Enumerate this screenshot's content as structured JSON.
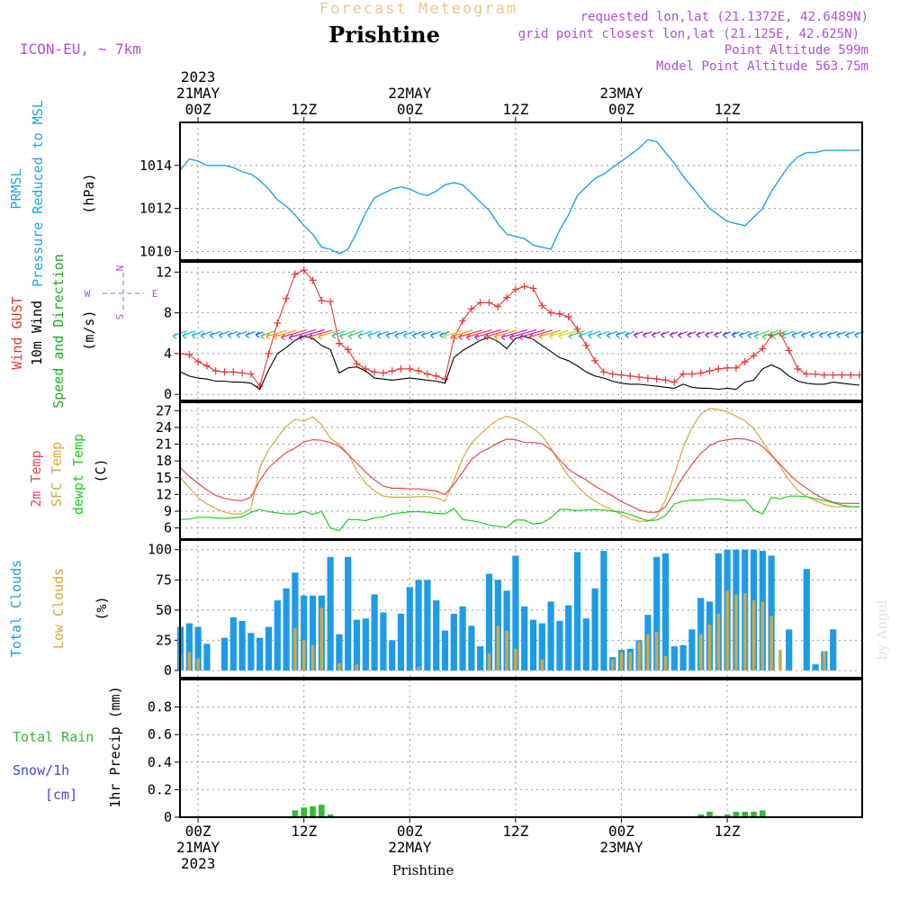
{
  "header": {
    "subtitle": "Forecast Meteogram",
    "title": "Prishtine",
    "model": "ICON-EU, ~ 7km",
    "requested": "requested lon,lat (21.1372E, 42.6489N)",
    "grid": "grid point closest lon,lat (21.125E, 42.625N)",
    "point_alt": "Point Altitude 599m",
    "model_alt": "Model Point Altitude 563.75m",
    "bottom_name": "Prishtine",
    "credit": "by Angel"
  },
  "time_axis": {
    "top_labels": [
      {
        "h": 0,
        "lines": [
          "2023",
          "21MAY",
          "00Z"
        ]
      },
      {
        "h": 12,
        "lines": [
          "12Z"
        ]
      },
      {
        "h": 24,
        "lines": [
          "22MAY",
          "00Z"
        ]
      },
      {
        "h": 36,
        "lines": [
          "12Z"
        ]
      },
      {
        "h": 48,
        "lines": [
          "23MAY",
          "00Z"
        ]
      },
      {
        "h": 60,
        "lines": [
          "12Z"
        ]
      }
    ],
    "bottom_labels": [
      {
        "h": 0,
        "lines": [
          "00Z",
          "21MAY",
          "2023"
        ]
      },
      {
        "h": 12,
        "lines": [
          "12Z"
        ]
      },
      {
        "h": 24,
        "lines": [
          "00Z",
          "22MAY"
        ]
      },
      {
        "h": 36,
        "lines": [
          "12Z"
        ]
      },
      {
        "h": 48,
        "lines": [
          "00Z",
          "23MAY"
        ]
      },
      {
        "h": 60,
        "lines": [
          "12Z"
        ]
      }
    ]
  },
  "panel_labels": {
    "p1": {
      "left1": "PRMSL",
      "left2": "Pressure Reduced to MSL",
      "unit": "(hPa)"
    },
    "p2": {
      "gust": "Wind GUST",
      "wind": "10m Wind",
      "dir": "Speed and Direction",
      "unit": "(m/s)",
      "compass_n": "N",
      "compass_s": "S",
      "compass_w": "W",
      "compass_e": "E"
    },
    "p3": {
      "t2m": "2m Temp",
      "sfc": "SFC Temp",
      "dew": "dewpt Temp",
      "unit": "(C)"
    },
    "p4": {
      "total": "Total Clouds",
      "low": "Low Clouds",
      "unit": "(%)"
    },
    "p5": {
      "rain": "Total  Rain",
      "snow": "Snow/1h",
      "cm": "[cm]",
      "unit": "1hr Precip (mm)"
    }
  },
  "colors": {
    "pressure": "#1ea5e8",
    "gust": "#ee3333",
    "wind": "#000000",
    "t2m": "#e84a4a",
    "sfc": "#dca640",
    "dew": "#22cc22",
    "total_cloud": "#1e9be6",
    "low_cloud": "#c8aa50",
    "rain": "#33bb33",
    "snow": "#4444dd",
    "label_purple": "#b050d8",
    "title_orange": "#f0c890"
  },
  "chart_data": [
    {
      "type": "line",
      "name": "PRMSL",
      "ylabel": "(hPa)",
      "ylim": [
        1009.6,
        1016
      ],
      "yticks": [
        1010,
        1012,
        1014
      ],
      "x": [
        -2,
        -1,
        0,
        1,
        2,
        3,
        4,
        5,
        6,
        7,
        8,
        9,
        10,
        11,
        12,
        13,
        14,
        15,
        16,
        17,
        18,
        19,
        20,
        21,
        22,
        23,
        24,
        25,
        26,
        27,
        28,
        29,
        30,
        31,
        32,
        33,
        34,
        35,
        36,
        37,
        38,
        39,
        40,
        41,
        42,
        43,
        44,
        45,
        46,
        47,
        48,
        49,
        50,
        51,
        52,
        53,
        54,
        55,
        56,
        57,
        58,
        59,
        60,
        61,
        62,
        63,
        64,
        65,
        66,
        67,
        68,
        69,
        70,
        71,
        72,
        73,
        74,
        75
      ],
      "values": [
        1013.8,
        1014.3,
        1014.2,
        1014.0,
        1014.0,
        1014.0,
        1013.9,
        1013.7,
        1013.6,
        1013.3,
        1012.9,
        1012.4,
        1012.1,
        1011.7,
        1011.2,
        1010.8,
        1010.2,
        1010.1,
        1009.9,
        1010.1,
        1010.9,
        1011.8,
        1012.5,
        1012.7,
        1012.9,
        1013.0,
        1012.9,
        1012.7,
        1012.6,
        1012.8,
        1013.1,
        1013.2,
        1013.1,
        1012.7,
        1012.3,
        1011.9,
        1011.3,
        1010.8,
        1010.7,
        1010.6,
        1010.3,
        1010.2,
        1010.1,
        1011.0,
        1011.7,
        1012.6,
        1013.0,
        1013.4,
        1013.6,
        1013.9,
        1014.2,
        1014.5,
        1014.8,
        1015.2,
        1015.1,
        1014.6,
        1014.1,
        1013.5,
        1013.0,
        1012.5,
        1012.0,
        1011.7,
        1011.4,
        1011.3,
        1011.2,
        1011.6,
        1012.0,
        1012.8,
        1013.4,
        1014.0,
        1014.4,
        1014.6,
        1014.6,
        1014.7,
        1014.7,
        1014.7,
        1014.7,
        1014.7
      ]
    },
    {
      "type": "line",
      "name": "Wind",
      "ylabel": "(m/s)",
      "ylim": [
        -0.6,
        13
      ],
      "yticks": [
        0,
        4,
        8,
        12
      ],
      "x": [
        -2,
        -1,
        0,
        1,
        2,
        3,
        4,
        5,
        6,
        7,
        8,
        9,
        10,
        11,
        12,
        13,
        14,
        15,
        16,
        17,
        18,
        19,
        20,
        21,
        22,
        23,
        24,
        25,
        26,
        27,
        28,
        29,
        30,
        31,
        32,
        33,
        34,
        35,
        36,
        37,
        38,
        39,
        40,
        41,
        42,
        43,
        44,
        45,
        46,
        47,
        48,
        49,
        50,
        51,
        52,
        53,
        54,
        55,
        56,
        57,
        58,
        59,
        60,
        61,
        62,
        63,
        64,
        65,
        66,
        67,
        68,
        69,
        70,
        71,
        72,
        73,
        74,
        75
      ],
      "series": [
        {
          "name": "Wind GUST",
          "values": [
            4.0,
            3.9,
            3.2,
            2.8,
            2.3,
            2.2,
            2.2,
            2.1,
            2.0,
            0.8,
            4.0,
            7.0,
            9.4,
            11.8,
            12.2,
            11.2,
            9.2,
            9.1,
            5.0,
            4.4,
            3.0,
            2.5,
            2.2,
            2.1,
            2.3,
            2.5,
            2.5,
            2.3,
            2.0,
            1.8,
            1.5,
            5.5,
            7.2,
            8.4,
            9.0,
            9.0,
            8.6,
            9.5,
            10.3,
            10.6,
            10.4,
            8.7,
            8.0,
            7.9,
            7.6,
            6.4,
            4.8,
            3.3,
            2.2,
            2.0,
            1.9,
            1.8,
            1.7,
            1.6,
            1.5,
            1.4,
            1.2,
            2.0,
            2.0,
            2.1,
            2.3,
            2.5,
            2.6,
            2.6,
            3.2,
            3.8,
            4.5,
            5.8,
            6.0,
            4.3,
            2.5,
            2.0,
            2.0,
            1.9,
            1.9,
            1.9,
            1.9,
            1.9
          ]
        },
        {
          "name": "10m Wind",
          "values": [
            2.2,
            1.8,
            1.6,
            1.5,
            1.3,
            1.3,
            1.2,
            1.2,
            1.1,
            0.5,
            2.4,
            4.0,
            4.6,
            5.3,
            5.7,
            5.5,
            4.8,
            4.4,
            2.1,
            2.6,
            2.7,
            2.3,
            1.6,
            1.5,
            1.4,
            1.5,
            1.6,
            1.5,
            1.4,
            1.3,
            1.1,
            3.6,
            4.3,
            4.8,
            5.3,
            5.6,
            5.2,
            4.5,
            5.5,
            5.7,
            5.4,
            4.8,
            4.2,
            3.6,
            3.3,
            2.8,
            2.2,
            1.8,
            1.6,
            1.3,
            1.1,
            1.0,
            1.0,
            0.9,
            0.8,
            0.7,
            0.6,
            1.0,
            0.7,
            0.6,
            0.6,
            0.5,
            0.6,
            0.5,
            1.2,
            1.4,
            2.5,
            2.9,
            2.5,
            1.8,
            1.3,
            1.1,
            1.0,
            1.0,
            1.2,
            1.1,
            1.0,
            0.9
          ]
        }
      ]
    },
    {
      "type": "line",
      "name": "Temperature",
      "ylabel": "(C)",
      "ylim": [
        4,
        28.5
      ],
      "yticks": [
        6,
        9,
        12,
        15,
        18,
        21,
        24,
        27
      ],
      "x": [
        -2,
        -1,
        0,
        1,
        2,
        3,
        4,
        5,
        6,
        7,
        8,
        9,
        10,
        11,
        12,
        13,
        14,
        15,
        16,
        17,
        18,
        19,
        20,
        21,
        22,
        23,
        24,
        25,
        26,
        27,
        28,
        29,
        30,
        31,
        32,
        33,
        34,
        35,
        36,
        37,
        38,
        39,
        40,
        41,
        42,
        43,
        44,
        45,
        46,
        47,
        48,
        49,
        50,
        51,
        52,
        53,
        54,
        55,
        56,
        57,
        58,
        59,
        60,
        61,
        62,
        63,
        64,
        65,
        66,
        67,
        68,
        69,
        70,
        71,
        72,
        73,
        74,
        75
      ],
      "series": [
        {
          "name": "2m Temp",
          "values": [
            16.8,
            15.2,
            14.0,
            12.8,
            11.8,
            11.3,
            11.0,
            10.9,
            11.5,
            14.5,
            16.8,
            18.2,
            19.5,
            20.3,
            21.4,
            21.8,
            21.7,
            21.3,
            20.6,
            19.2,
            17.6,
            16.0,
            14.6,
            13.5,
            13.1,
            13.1,
            13.0,
            13.0,
            12.8,
            12.6,
            12.0,
            13.8,
            16.0,
            18.3,
            19.5,
            20.3,
            21.2,
            21.9,
            21.8,
            21.3,
            21.3,
            21.1,
            20.0,
            18.2,
            16.5,
            15.5,
            14.6,
            13.5,
            12.6,
            11.7,
            10.7,
            10.0,
            9.2,
            8.8,
            8.8,
            9.8,
            12.5,
            15.2,
            17.4,
            19.4,
            20.7,
            21.5,
            21.8,
            22.0,
            21.9,
            21.5,
            20.6,
            19.0,
            17.4,
            15.7,
            14.2,
            13.1,
            12.0,
            11.2,
            10.6,
            10.4,
            10.4,
            10.4
          ]
        },
        {
          "name": "SFC Temp",
          "values": [
            15.0,
            13.2,
            11.4,
            10.3,
            9.5,
            8.8,
            8.5,
            8.5,
            9.5,
            16.8,
            20.0,
            22.2,
            24.2,
            25.5,
            25.1,
            25.9,
            24.5,
            22.0,
            21.0,
            19.3,
            16.2,
            14.0,
            12.6,
            11.7,
            11.5,
            11.5,
            11.5,
            11.6,
            11.6,
            11.4,
            10.8,
            14.5,
            18.5,
            21.2,
            22.8,
            24.2,
            25.4,
            26.0,
            25.6,
            24.8,
            23.8,
            22.5,
            20.3,
            17.6,
            15.3,
            13.5,
            11.9,
            10.8,
            9.9,
            9.2,
            8.4,
            7.6,
            7.2,
            7.2,
            8.0,
            11.0,
            15.5,
            20.4,
            24.0,
            26.4,
            27.4,
            27.2,
            26.8,
            26.0,
            25.2,
            23.8,
            21.5,
            19.2,
            17.0,
            14.6,
            12.7,
            11.6,
            10.9,
            10.2,
            9.8,
            9.8,
            9.8,
            9.8
          ]
        },
        {
          "name": "dewpt Temp",
          "values": [
            7.5,
            7.6,
            7.9,
            7.9,
            7.8,
            7.7,
            7.8,
            8.0,
            8.8,
            9.3,
            8.9,
            8.7,
            8.5,
            8.5,
            9.0,
            8.4,
            9.0,
            6.0,
            5.5,
            7.5,
            7.5,
            7.3,
            7.8,
            8.0,
            8.5,
            8.7,
            8.9,
            8.9,
            8.8,
            8.6,
            8.5,
            9.5,
            7.5,
            7.3,
            7.0,
            6.5,
            6.3,
            6.1,
            7.4,
            7.4,
            6.7,
            6.9,
            7.8,
            9.3,
            9.3,
            9.1,
            9.2,
            9.3,
            9.2,
            9.0,
            8.8,
            8.4,
            7.8,
            7.3,
            7.4,
            8.2,
            10.3,
            10.8,
            11.0,
            11.0,
            11.2,
            11.2,
            11.0,
            10.9,
            11.0,
            9.2,
            8.5,
            11.5,
            11.2,
            11.7,
            11.7,
            11.6,
            11.2,
            10.9,
            10.5,
            10.1,
            9.8,
            9.8
          ]
        }
      ]
    },
    {
      "type": "bar",
      "name": "Clouds",
      "ylabel": "(%)",
      "ylim": [
        -6,
        108
      ],
      "yticks": [
        0,
        25,
        50,
        75,
        100
      ],
      "x": [
        -2,
        -1,
        0,
        1,
        2,
        3,
        4,
        5,
        6,
        7,
        8,
        9,
        10,
        11,
        12,
        13,
        14,
        15,
        16,
        17,
        18,
        19,
        20,
        21,
        22,
        23,
        24,
        25,
        26,
        27,
        28,
        29,
        30,
        31,
        32,
        33,
        34,
        35,
        36,
        37,
        38,
        39,
        40,
        41,
        42,
        43,
        44,
        45,
        46,
        47,
        48,
        49,
        50,
        51,
        52,
        53,
        54,
        55,
        56,
        57,
        58,
        59,
        60,
        61,
        62,
        63,
        64,
        65,
        66,
        67,
        68,
        69,
        70,
        71,
        72,
        73,
        74,
        75
      ],
      "series": [
        {
          "name": "Total Clouds",
          "values": [
            36,
            39,
            36,
            22,
            0,
            27,
            44,
            41,
            31,
            27,
            36,
            58,
            68,
            81,
            62,
            62,
            62,
            94,
            30,
            94,
            42,
            43,
            63,
            48,
            25,
            47,
            69,
            75,
            75,
            58,
            33,
            47,
            53,
            37,
            20,
            80,
            75,
            66,
            95,
            53,
            42,
            39,
            57,
            41,
            54,
            98,
            43,
            68,
            99,
            11,
            17,
            18,
            25,
            46,
            94,
            97,
            20,
            21,
            34,
            60,
            57,
            97,
            100,
            100,
            100,
            100,
            99,
            95,
            0,
            34,
            0,
            84,
            5,
            16,
            34,
            0,
            0,
            0
          ]
        },
        {
          "name": "Low Clouds",
          "values": [
            13,
            15,
            10,
            0,
            0,
            0,
            0,
            0,
            0,
            0,
            0,
            0,
            0,
            35,
            25,
            21,
            52,
            0,
            6,
            0,
            5,
            0,
            0,
            0,
            0,
            0,
            0,
            3,
            0,
            0,
            0,
            0,
            0,
            0,
            0,
            14,
            37,
            33,
            18,
            0,
            0,
            9,
            0,
            0,
            0,
            0,
            0,
            0,
            0,
            9,
            15,
            15,
            24,
            30,
            32,
            12,
            0,
            0,
            0,
            30,
            38,
            47,
            66,
            63,
            64,
            58,
            57,
            45,
            17,
            0,
            0,
            0,
            0,
            16,
            0,
            0,
            0,
            0
          ]
        }
      ]
    },
    {
      "type": "bar",
      "name": "Precip",
      "ylabel": "1hr Precip (mm)",
      "ylim": [
        0,
        1.0
      ],
      "yticks": [
        0,
        0.2,
        0.4,
        0.6,
        0.8
      ],
      "x": [
        11,
        12,
        13,
        14,
        15,
        57,
        58,
        59,
        60,
        61,
        62,
        63,
        64
      ],
      "values": [
        0.05,
        0.07,
        0.08,
        0.09,
        0.02,
        0.02,
        0.04,
        0.01,
        0.02,
        0.04,
        0.04,
        0.04,
        0.05
      ]
    }
  ]
}
